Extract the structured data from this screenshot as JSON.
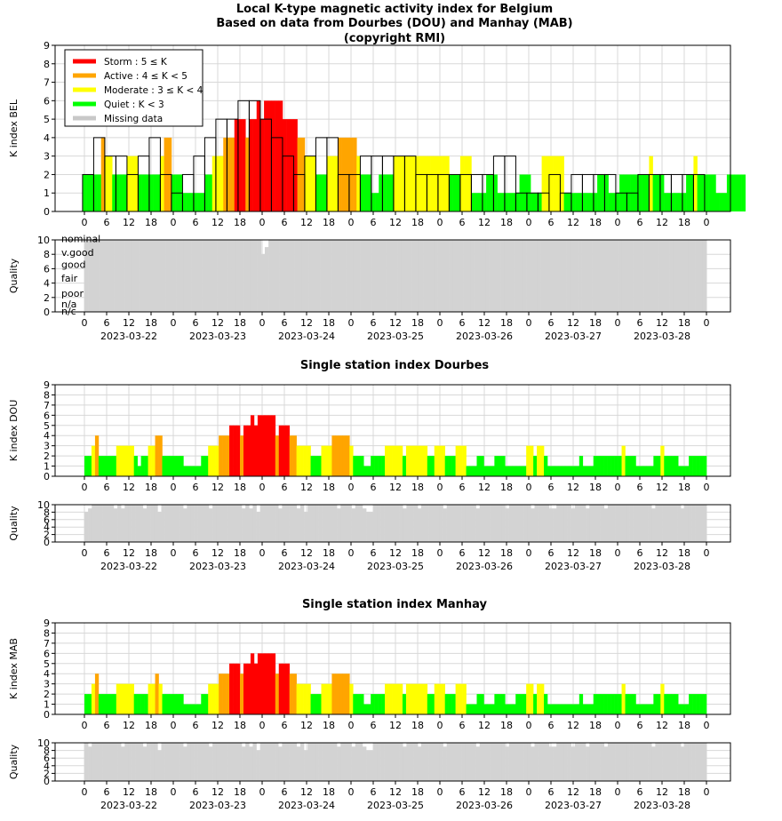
{
  "title_lines": [
    "Local K-type magnetic activity index for Belgium",
    "Based on data from Dourbes (DOU) and Manhay (MAB)",
    "(copyright RMI)"
  ],
  "legend": [
    {
      "label": "Storm : 5 ≤ K",
      "color": "#ff0000"
    },
    {
      "label": "Active : 4 ≤ K < 5",
      "color": "#ffa500"
    },
    {
      "label": "Moderate : 3 ≤ K < 4",
      "color": "#ffff00"
    },
    {
      "label": "Quiet : K < 3",
      "color": "#00ff00"
    },
    {
      "label": "Missing data",
      "color": "#c8c8c8"
    }
  ],
  "colors": {
    "storm": "#ff0000",
    "active": "#ffa500",
    "moderate": "#ffff00",
    "quiet": "#00ff00",
    "quality": "#d3d3d3",
    "grid": "#d8d8d8"
  },
  "x_tick_labels": [
    "0",
    "6",
    "12",
    "18",
    "0",
    "6",
    "12",
    "18",
    "0",
    "6",
    "12",
    "18",
    "0",
    "6",
    "12",
    "18",
    "0",
    "6",
    "12",
    "18",
    "0",
    "6",
    "12",
    "18",
    "0",
    "6",
    "12",
    "18",
    "0"
  ],
  "dates": [
    "2023-03-22",
    "2023-03-23",
    "2023-03-24",
    "2023-03-25",
    "2023-03-26",
    "2023-03-27",
    "2023-03-28"
  ],
  "quality_labels": [
    "nominal",
    "v.good",
    "good",
    "fair",
    "poor",
    "n/a",
    "n/c"
  ],
  "chart_data": [
    {
      "type": "bar",
      "panel": "bel",
      "ylabel": "K index BEL",
      "ylim": [
        0,
        9
      ],
      "x_unit": "hours since 2023-03-22 00:00 UTC",
      "series": [
        {
          "name": "K index BEL (3-hourly)",
          "values": [
            2,
            4,
            3,
            3,
            2,
            3,
            4,
            2,
            1,
            2,
            3,
            4,
            5,
            5,
            6,
            6,
            5,
            4,
            3,
            2,
            3,
            4,
            4,
            2,
            2,
            3,
            3,
            3,
            3,
            3,
            2,
            2,
            2,
            2,
            2,
            2,
            2,
            3,
            3,
            1,
            1,
            1,
            2,
            1,
            2,
            2,
            2,
            2,
            1,
            1,
            2,
            2,
            2,
            2,
            2,
            2
          ]
        },
        {
          "name": "K index BEL (1-hourly)",
          "values": [
            2,
            2,
            2,
            2,
            2,
            4,
            3,
            3,
            2,
            2,
            2,
            2,
            3,
            3,
            3,
            2,
            2,
            2,
            2,
            2,
            2,
            3,
            4,
            4,
            2,
            2,
            2,
            1,
            1,
            1,
            1,
            1,
            1,
            2,
            2,
            3,
            3,
            3,
            4,
            4,
            4,
            5,
            5,
            5,
            4,
            5,
            5,
            6,
            5,
            6,
            6,
            6,
            6,
            6,
            5,
            5,
            5,
            5,
            4,
            4,
            3,
            3,
            3,
            2,
            2,
            2,
            3,
            3,
            3,
            4,
            4,
            4,
            4,
            4,
            3,
            2,
            2,
            2,
            1,
            1,
            2,
            2,
            2,
            2,
            3,
            3,
            3,
            3,
            3,
            3,
            3,
            3,
            3,
            3,
            3,
            3,
            3,
            3,
            3,
            2,
            2,
            2,
            3,
            3,
            3,
            1,
            1,
            1,
            1,
            2,
            2,
            2,
            1,
            1,
            1,
            1,
            1,
            1,
            2,
            2,
            2,
            1,
            1,
            1,
            3,
            3,
            3,
            3,
            3,
            3,
            1,
            1,
            1,
            1,
            1,
            1,
            1,
            1,
            1,
            2,
            2,
            2,
            1,
            1,
            1,
            2,
            2,
            2,
            2,
            2,
            2,
            2,
            2,
            3,
            2,
            2,
            2,
            1,
            1,
            1,
            1,
            1,
            1,
            2,
            2,
            3,
            2,
            2,
            2,
            2,
            2,
            1,
            1,
            1,
            2,
            2,
            2,
            2,
            2
          ]
        }
      ]
    },
    {
      "type": "bar",
      "panel": "bel-quality",
      "ylabel": "Quality",
      "ylim": [
        0,
        10
      ],
      "series": [
        {
          "name": "quality",
          "values": [
            10,
            10,
            10,
            10,
            10,
            10,
            10,
            10,
            10,
            10,
            10,
            10,
            10,
            10,
            10,
            10,
            10,
            10,
            10,
            10,
            10,
            10,
            10,
            10,
            10,
            10,
            10,
            10,
            10,
            10,
            10,
            10,
            10,
            10,
            10,
            10,
            10,
            10,
            10,
            10,
            10,
            10,
            10,
            10,
            10,
            10,
            10,
            10,
            8,
            9,
            10,
            10,
            10,
            10,
            10,
            10,
            10,
            10,
            10,
            10,
            10,
            10,
            10,
            10,
            10,
            10,
            10,
            10,
            10,
            10,
            10,
            10,
            10,
            10,
            10,
            10,
            10,
            10,
            10,
            10,
            10,
            10,
            10,
            10,
            10,
            10,
            10,
            10,
            10,
            10,
            10,
            10,
            10,
            10,
            10,
            10,
            10,
            10,
            10,
            10,
            10,
            10,
            10,
            10,
            10,
            10,
            10,
            10,
            10,
            10,
            10,
            10,
            10,
            10,
            10,
            10,
            10,
            10,
            10,
            10,
            10,
            10,
            10,
            10,
            10,
            10,
            10,
            10,
            10,
            10,
            10,
            10,
            10,
            10,
            10,
            10,
            10,
            10,
            10,
            10,
            10,
            10,
            10,
            10,
            10,
            10,
            10,
            10,
            10,
            10,
            10,
            10,
            10,
            10,
            10,
            10,
            10,
            10,
            10,
            10,
            10,
            10,
            10,
            10,
            10,
            10,
            10,
            10,
            10
          ]
        }
      ]
    },
    {
      "type": "bar",
      "panel": "dou",
      "title": "Single station index Dourbes",
      "ylabel": "K index DOU",
      "ylim": [
        0,
        9
      ],
      "series": [
        {
          "name": "K index DOU",
          "values": [
            2,
            2,
            3,
            4,
            2,
            2,
            2,
            2,
            2,
            3,
            3,
            3,
            3,
            3,
            2,
            1,
            2,
            2,
            3,
            3,
            4,
            4,
            2,
            2,
            2,
            2,
            2,
            2,
            1,
            1,
            1,
            1,
            1,
            2,
            2,
            3,
            3,
            3,
            4,
            4,
            4,
            5,
            5,
            5,
            4,
            5,
            5,
            6,
            5,
            6,
            6,
            6,
            6,
            6,
            4,
            5,
            5,
            5,
            4,
            4,
            3,
            3,
            3,
            3,
            2,
            2,
            2,
            3,
            3,
            3,
            4,
            4,
            4,
            4,
            4,
            3,
            2,
            2,
            2,
            1,
            1,
            2,
            2,
            2,
            2,
            3,
            3,
            3,
            3,
            3,
            2,
            3,
            3,
            3,
            3,
            3,
            3,
            2,
            2,
            3,
            3,
            3,
            2,
            2,
            2,
            3,
            3,
            3,
            1,
            1,
            1,
            2,
            2,
            1,
            1,
            1,
            2,
            2,
            2,
            1,
            1,
            1,
            1,
            1,
            1,
            3,
            3,
            2,
            3,
            3,
            2,
            1,
            1,
            1,
            1,
            1,
            1,
            1,
            1,
            1,
            2,
            1,
            1,
            1,
            2,
            2,
            2,
            2,
            2,
            2,
            2,
            2,
            3,
            2,
            2,
            2,
            1,
            1,
            1,
            1,
            1,
            2,
            2,
            3,
            2,
            2,
            2,
            2,
            1,
            1,
            1,
            2,
            2,
            2,
            2,
            2
          ]
        }
      ]
    },
    {
      "type": "bar",
      "panel": "dou-quality",
      "ylabel": "Quality",
      "ylim": [
        0,
        10
      ],
      "series": [
        {
          "name": "quality",
          "values": [
            8,
            9,
            10,
            10,
            10,
            10,
            10,
            10,
            9,
            10,
            9,
            10,
            10,
            10,
            10,
            10,
            9,
            10,
            10,
            10,
            8,
            10,
            10,
            10,
            10,
            10,
            10,
            9,
            10,
            10,
            10,
            10,
            10,
            10,
            9,
            10,
            10,
            10,
            10,
            10,
            10,
            10,
            10,
            9,
            10,
            9,
            10,
            8,
            10,
            10,
            10,
            10,
            10,
            9,
            10,
            10,
            10,
            10,
            9,
            10,
            8,
            10,
            10,
            10,
            10,
            10,
            10,
            10,
            10,
            9,
            10,
            10,
            10,
            9,
            10,
            10,
            9,
            8,
            8,
            10,
            10,
            10,
            10,
            10,
            10,
            10,
            10,
            9,
            10,
            10,
            10,
            9,
            10,
            10,
            10,
            10,
            10,
            10,
            9,
            10,
            10,
            10,
            10,
            10,
            10,
            10,
            10,
            9,
            10,
            10,
            10,
            10,
            10,
            10,
            10,
            9,
            10,
            10,
            10,
            10,
            10,
            10,
            9,
            10,
            10,
            10,
            10,
            9,
            9,
            10,
            10,
            10,
            10,
            9,
            10,
            10,
            10,
            9,
            10,
            10,
            10,
            10,
            9,
            10,
            10,
            10,
            10,
            10,
            10,
            10,
            10,
            10,
            10,
            10,
            10,
            9,
            10,
            10,
            10,
            10,
            10,
            10,
            10,
            9,
            10,
            10,
            10,
            10,
            10,
            10
          ]
        }
      ]
    },
    {
      "type": "bar",
      "panel": "mab",
      "title": "Single station index Manhay",
      "ylabel": "K index MAB",
      "ylim": [
        0,
        9
      ],
      "series": [
        {
          "name": "K index MAB",
          "values": [
            2,
            2,
            3,
            4,
            2,
            2,
            2,
            2,
            2,
            3,
            3,
            3,
            3,
            3,
            2,
            2,
            2,
            2,
            3,
            3,
            4,
            3,
            2,
            2,
            2,
            2,
            2,
            2,
            1,
            1,
            1,
            1,
            1,
            2,
            2,
            3,
            3,
            3,
            4,
            4,
            4,
            5,
            5,
            5,
            4,
            5,
            5,
            6,
            5,
            6,
            6,
            6,
            6,
            6,
            4,
            5,
            5,
            5,
            4,
            4,
            3,
            3,
            3,
            3,
            2,
            2,
            2,
            3,
            3,
            3,
            4,
            4,
            4,
            4,
            4,
            3,
            2,
            2,
            2,
            1,
            1,
            2,
            2,
            2,
            2,
            3,
            3,
            3,
            3,
            3,
            2,
            3,
            3,
            3,
            3,
            3,
            3,
            2,
            2,
            3,
            3,
            3,
            2,
            2,
            2,
            3,
            3,
            3,
            1,
            1,
            1,
            2,
            2,
            1,
            1,
            1,
            2,
            2,
            2,
            1,
            1,
            1,
            2,
            2,
            2,
            3,
            3,
            2,
            3,
            3,
            2,
            1,
            1,
            1,
            1,
            1,
            1,
            1,
            1,
            1,
            2,
            1,
            1,
            1,
            2,
            2,
            2,
            2,
            2,
            2,
            2,
            2,
            3,
            2,
            2,
            2,
            1,
            1,
            1,
            1,
            1,
            2,
            2,
            3,
            2,
            2,
            2,
            2,
            1,
            1,
            1,
            2,
            2,
            2,
            2,
            2
          ]
        }
      ]
    },
    {
      "type": "bar",
      "panel": "mab-quality",
      "ylabel": "Quality",
      "ylim": [
        0,
        10
      ],
      "series": [
        {
          "name": "quality",
          "values": [
            10,
            9,
            10,
            10,
            10,
            10,
            10,
            10,
            10,
            10,
            9,
            10,
            10,
            10,
            10,
            10,
            9,
            10,
            10,
            10,
            8,
            10,
            10,
            10,
            10,
            10,
            10,
            9,
            10,
            10,
            10,
            10,
            10,
            10,
            9,
            10,
            10,
            10,
            10,
            10,
            10,
            10,
            10,
            9,
            10,
            9,
            10,
            8,
            10,
            10,
            10,
            10,
            10,
            9,
            10,
            10,
            10,
            10,
            9,
            10,
            8,
            10,
            10,
            10,
            10,
            10,
            10,
            10,
            10,
            9,
            10,
            10,
            10,
            9,
            10,
            10,
            9,
            8,
            8,
            10,
            10,
            10,
            10,
            10,
            10,
            10,
            10,
            9,
            10,
            10,
            10,
            9,
            10,
            10,
            10,
            10,
            10,
            10,
            9,
            10,
            10,
            10,
            10,
            10,
            10,
            10,
            10,
            9,
            10,
            10,
            10,
            10,
            10,
            10,
            10,
            9,
            10,
            10,
            10,
            10,
            10,
            10,
            9,
            10,
            10,
            10,
            10,
            9,
            9,
            10,
            10,
            10,
            10,
            9,
            10,
            10,
            10,
            9,
            10,
            10,
            10,
            10,
            9,
            10,
            10,
            10,
            10,
            10,
            10,
            10,
            10,
            10,
            10,
            10,
            10,
            9,
            10,
            10,
            10,
            10,
            10,
            10,
            10,
            9,
            10,
            10,
            10,
            10,
            10,
            10
          ]
        }
      ]
    }
  ]
}
